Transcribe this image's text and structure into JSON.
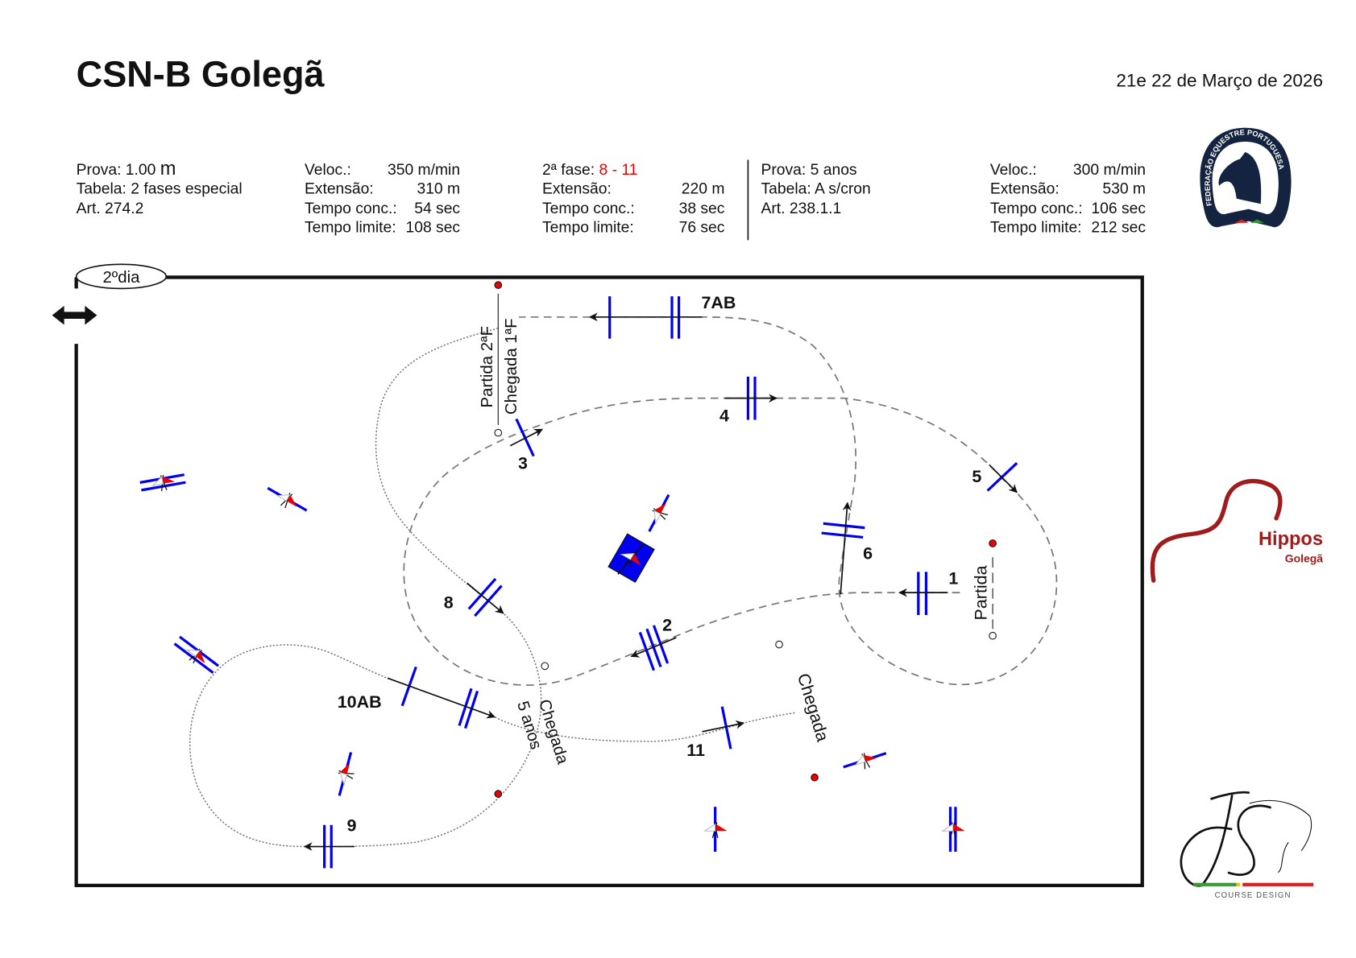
{
  "header": {
    "title": "CSN-B Golegã",
    "date": "21e 22 de Março de 2026"
  },
  "class_1": {
    "prova": "Prova: 1.00",
    "prova_unit": "m",
    "tabela": "Tabela: 2 fases especial",
    "art": "Art. 274.2",
    "veloc_label": "Veloc.:",
    "veloc": "350 m/min",
    "ext_label": "Extensão:",
    "ext": "310 m",
    "tc_label": "Tempo conc.:",
    "tc": "54 sec",
    "tl_label": "Tempo limite:",
    "tl": "108 sec"
  },
  "phase_2": {
    "label": "2ª fase:",
    "range": "8 - 11",
    "ext_label": "Extensão:",
    "ext": "220 m",
    "tc_label": "Tempo conc.:",
    "tc": "38 sec",
    "tl_label": "Tempo limite:",
    "tl": "76 sec"
  },
  "class_2": {
    "prova": "Prova: 5 anos",
    "tabela": "Tabela: A s/cron",
    "art": "Art. 238.1.1",
    "veloc_label": "Veloc.:",
    "veloc": "300 m/min",
    "ext_label": "Extensão:",
    "ext": "530 m",
    "tc_label": "Tempo conc.:",
    "tc": "106 sec",
    "tl_label": "Tempo limite:",
    "tl": "212 sec"
  },
  "arena": {
    "day_label": "2ºdia",
    "fences": [
      "1",
      "2",
      "3",
      "4",
      "5",
      "6",
      "7AB",
      "8",
      "9",
      "10AB",
      "11"
    ],
    "start": "Partida",
    "finish": "Chegada",
    "start_2f": "Partida 2ªF",
    "finish_1f": "Chegada 1ªF",
    "finish_5anos_a": "Chegada",
    "finish_5anos_b": "5 anos"
  },
  "logos": {
    "fep": "FEDERAÇÃO EQUESTRE PORTUGUESA",
    "hippos": "Hippos",
    "hippos_sub": "Golegã",
    "js_sub": "COURSE DESIGN"
  },
  "colors": {
    "fence": "#0000ee",
    "accent_red": "#ee0000",
    "fep_navy": "#14233f",
    "hippos": "#a01c1c"
  }
}
